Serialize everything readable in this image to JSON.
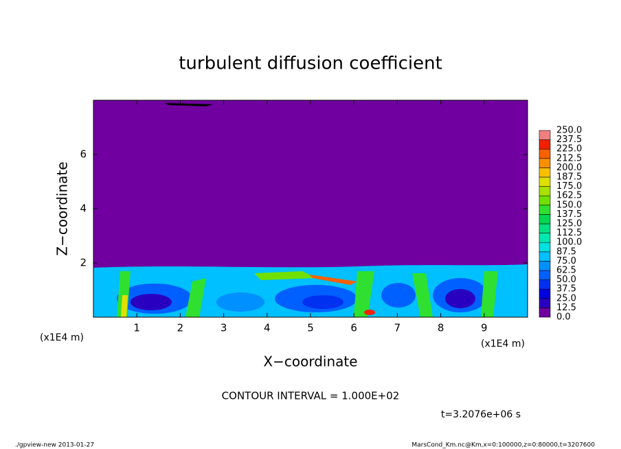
{
  "chart_data": {
    "type": "contour",
    "title": "turbulent diffusion coefficient",
    "xlabel": "X−coordinate",
    "ylabel": "Z−coordinate",
    "x_unit_label": "(x1E4 m)",
    "xlim": [
      0,
      10
    ],
    "xticks": [
      1,
      2,
      3,
      4,
      5,
      6,
      7,
      8,
      9
    ],
    "ylim": [
      0,
      8
    ],
    "yticks": [
      2,
      4,
      6
    ],
    "contour_interval": "CONTOUR INTERVAL = 1.000E+02",
    "time_label": "t=3.2076e+06 s",
    "colorbar": {
      "levels": [
        {
          "value": 0,
          "label": "0.0"
        },
        12.5,
        25,
        37.5,
        50,
        62.5,
        75,
        87.5,
        100,
        112.5,
        125,
        137.5,
        150,
        162.5,
        175,
        187.5,
        200,
        212.5,
        225,
        237.5,
        {
          "value": 250,
          "label": "250.0"
        }
      ],
      "colors": [
        "#7000a0",
        "#2a00c0",
        "#0000e0",
        "#0030f0",
        "#0060ff",
        "#0090ff",
        "#00c0ff",
        "#00e0e0",
        "#00e8b0",
        "#00e080",
        "#00d850",
        "#30e030",
        "#70e000",
        "#a8e000",
        "#e0e000",
        "#f8c000",
        "#f89000",
        "#f86000",
        "#f02000",
        "#f08080"
      ]
    },
    "footer_left": "./gpview-new  2013-01-27",
    "footer_right": "MarsCond_Km.nc@Km,x=0:100000,z=0:80000,t=3207600"
  }
}
